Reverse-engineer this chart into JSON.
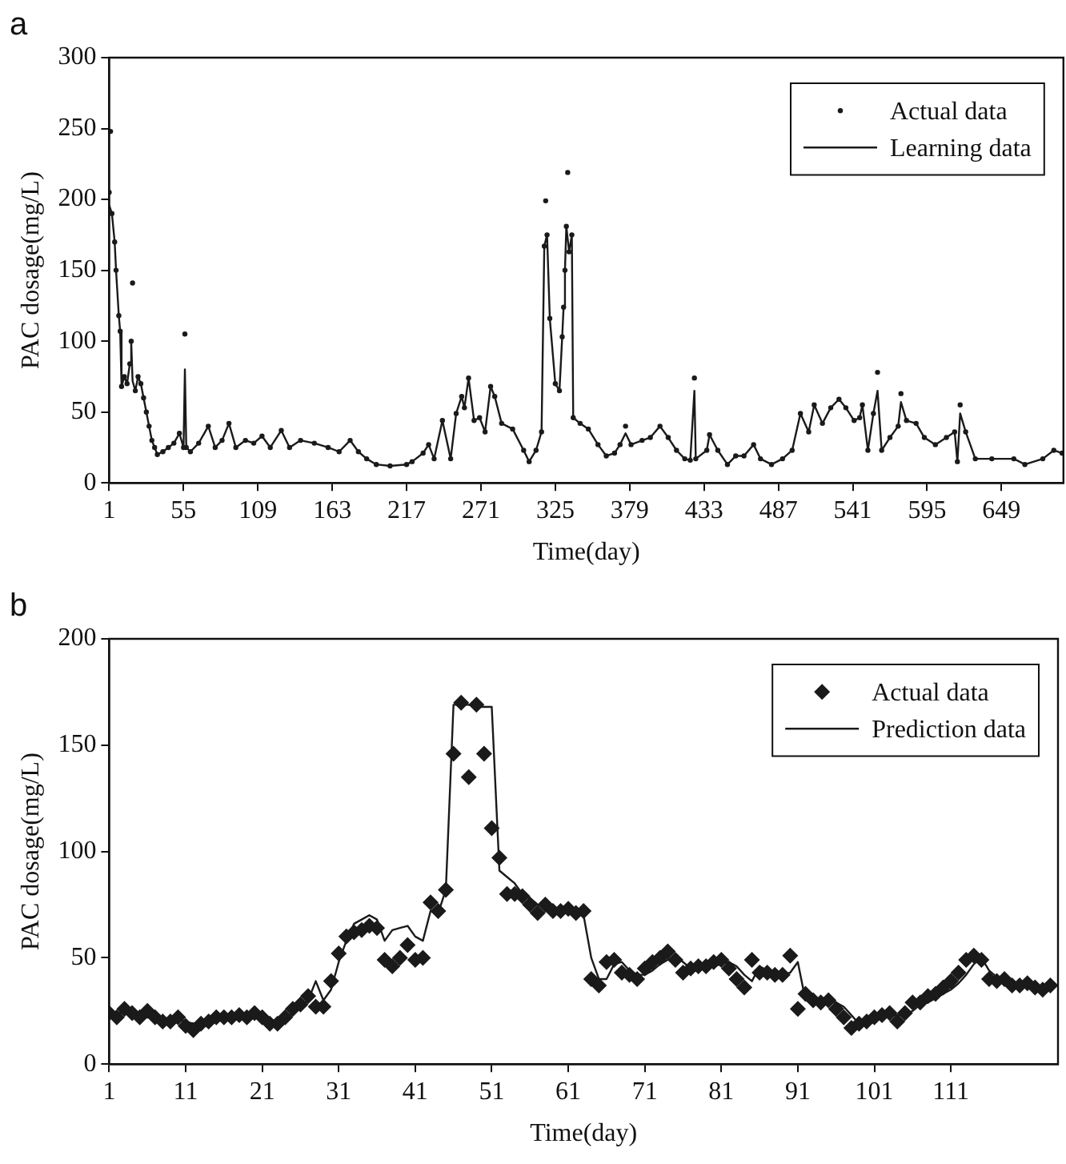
{
  "chart_data": [
    {
      "type": "scatter",
      "title": "a",
      "xlabel": "Time(day)",
      "ylabel": "PAC dosage(mg/L)",
      "xlim": [
        1,
        694
      ],
      "xticks": [
        1,
        55,
        109,
        163,
        217,
        271,
        325,
        379,
        433,
        487,
        541,
        595,
        649
      ],
      "ylim": [
        0,
        300
      ],
      "yticks": [
        0,
        50,
        100,
        150,
        200,
        250,
        300
      ],
      "grid": false,
      "legend": "top right",
      "series": [
        {
          "name": "Actual data",
          "type": "scatter",
          "marker": "circle",
          "color": "#1a1a1a",
          "x": [
            1,
            2,
            3,
            5,
            6,
            8,
            9,
            10,
            12,
            14,
            16,
            17,
            18,
            20,
            22,
            24,
            26,
            28,
            30,
            32,
            34,
            36,
            40,
            44,
            48,
            52,
            55,
            56,
            57,
            60,
            66,
            73,
            78,
            83,
            88,
            93,
            100,
            106,
            112,
            118,
            126,
            132,
            140,
            150,
            160,
            168,
            176,
            182,
            188,
            195,
            205,
            217,
            221,
            229,
            233,
            237,
            243,
            249,
            253,
            257,
            259,
            262,
            266,
            270,
            274,
            278,
            281,
            286,
            294,
            302,
            306,
            311,
            315,
            317,
            318,
            319,
            321,
            325,
            328,
            330,
            331,
            332,
            333,
            334,
            335,
            337,
            338,
            343,
            349,
            356,
            362,
            368,
            372,
            376,
            380,
            388,
            394,
            401,
            407,
            413,
            419,
            423,
            426,
            427,
            435,
            437,
            443,
            450,
            456,
            462,
            469,
            474,
            482,
            490,
            497,
            503,
            509,
            513,
            519,
            525,
            531,
            536,
            542,
            546,
            548,
            552,
            556,
            559,
            562,
            568,
            574,
            576,
            580,
            587,
            593,
            601,
            609,
            615,
            617,
            619,
            623,
            630,
            642,
            658,
            666,
            679,
            687,
            693
          ],
          "values": [
            205,
            248,
            190,
            170,
            150,
            118,
            107,
            68,
            75,
            70,
            84,
            100,
            141,
            65,
            75,
            70,
            60,
            50,
            40,
            30,
            25,
            20,
            22,
            25,
            28,
            35,
            25,
            105,
            25,
            22,
            28,
            40,
            25,
            30,
            42,
            25,
            30,
            28,
            33,
            25,
            37,
            25,
            30,
            28,
            25,
            22,
            30,
            22,
            17,
            13,
            12,
            13,
            15,
            21,
            27,
            17,
            44,
            17,
            49,
            61,
            53,
            74,
            44,
            46,
            36,
            68,
            61,
            42,
            38,
            23,
            15,
            23,
            36,
            167,
            199,
            175,
            116,
            70,
            65,
            103,
            124,
            150,
            181,
            219,
            163,
            175,
            46,
            42,
            38,
            27,
            19,
            21,
            27,
            40,
            27,
            30,
            32,
            40,
            32,
            23,
            17,
            16,
            74,
            17,
            23,
            34,
            23,
            13,
            19,
            19,
            27,
            17,
            13,
            17,
            23,
            49,
            36,
            55,
            42,
            53,
            59,
            53,
            44,
            46,
            55,
            23,
            49,
            78,
            23,
            32,
            40,
            63,
            44,
            42,
            32,
            27,
            32,
            36,
            15,
            55,
            36,
            17,
            17,
            17,
            13,
            17,
            23,
            21
          ]
        },
        {
          "name": "Learning data",
          "type": "line",
          "marker": "none",
          "line_style": "solid",
          "color": "#1a1a1a",
          "x": [
            1,
            3,
            5,
            6,
            8,
            9,
            10,
            12,
            14,
            16,
            17,
            18,
            20,
            22,
            24,
            26,
            28,
            30,
            32,
            34,
            36,
            40,
            44,
            48,
            52,
            55,
            56,
            57,
            60,
            66,
            73,
            78,
            83,
            88,
            93,
            100,
            106,
            112,
            118,
            126,
            132,
            140,
            150,
            160,
            168,
            176,
            182,
            188,
            195,
            205,
            217,
            221,
            229,
            233,
            237,
            243,
            249,
            253,
            257,
            259,
            262,
            266,
            270,
            274,
            278,
            281,
            286,
            294,
            302,
            306,
            311,
            315,
            317,
            319,
            321,
            325,
            328,
            330,
            331,
            332,
            333,
            335,
            337,
            338,
            343,
            349,
            356,
            362,
            368,
            372,
            376,
            380,
            388,
            394,
            401,
            407,
            413,
            419,
            423,
            426,
            427,
            435,
            437,
            443,
            450,
            456,
            462,
            469,
            474,
            482,
            490,
            497,
            503,
            509,
            513,
            519,
            525,
            531,
            536,
            542,
            546,
            548,
            552,
            556,
            559,
            562,
            568,
            574,
            576,
            580,
            587,
            593,
            601,
            609,
            615,
            617,
            619,
            623,
            630,
            642,
            658,
            666,
            679,
            687,
            693
          ],
          "values": [
            196,
            190,
            170,
            150,
            118,
            107,
            68,
            75,
            70,
            84,
            100,
            72,
            65,
            75,
            70,
            60,
            50,
            40,
            30,
            25,
            20,
            22,
            25,
            28,
            35,
            25,
            80,
            25,
            22,
            28,
            40,
            25,
            30,
            42,
            25,
            30,
            28,
            33,
            25,
            37,
            25,
            30,
            28,
            25,
            22,
            30,
            22,
            17,
            13,
            12,
            13,
            15,
            21,
            27,
            17,
            44,
            17,
            49,
            61,
            53,
            74,
            44,
            46,
            36,
            68,
            61,
            42,
            38,
            23,
            15,
            23,
            36,
            167,
            175,
            116,
            70,
            65,
            103,
            124,
            150,
            181,
            163,
            175,
            46,
            42,
            38,
            27,
            19,
            21,
            27,
            35,
            27,
            30,
            32,
            40,
            32,
            23,
            17,
            16,
            65,
            17,
            23,
            34,
            23,
            13,
            19,
            19,
            27,
            17,
            13,
            17,
            23,
            49,
            36,
            55,
            42,
            53,
            59,
            53,
            44,
            46,
            55,
            23,
            49,
            65,
            23,
            32,
            40,
            57,
            44,
            42,
            32,
            27,
            32,
            36,
            15,
            49,
            36,
            17,
            17,
            17,
            13,
            17,
            23,
            21
          ]
        }
      ]
    },
    {
      "type": "scatter",
      "title": "b",
      "xlabel": "Time(day)",
      "ylabel": "PAC dosage(mg/L)",
      "xlim": [
        1,
        125
      ],
      "xticks": [
        1,
        11,
        21,
        31,
        41,
        51,
        61,
        71,
        81,
        91,
        101,
        111
      ],
      "ylim": [
        0,
        200
      ],
      "yticks": [
        0,
        50,
        100,
        150,
        200
      ],
      "grid": false,
      "legend": "top right",
      "series": [
        {
          "name": "Actual data",
          "type": "scatter",
          "marker": "diamond",
          "color": "#1a1a1a",
          "x": [
            1,
            2,
            3,
            4,
            5,
            6,
            7,
            8,
            9,
            10,
            11,
            12,
            13,
            14,
            15,
            16,
            17,
            18,
            19,
            20,
            21,
            22,
            23,
            24,
            25,
            26,
            27,
            28,
            29,
            30,
            31,
            32,
            33,
            34,
            35,
            36,
            37,
            38,
            39,
            40,
            41,
            42,
            43,
            44,
            45,
            46,
            47,
            48,
            49,
            50,
            51,
            52,
            53,
            54,
            55,
            56,
            57,
            58,
            59,
            60,
            61,
            62,
            63,
            64,
            65,
            66,
            67,
            68,
            69,
            70,
            71,
            72,
            73,
            74,
            75,
            76,
            77,
            78,
            79,
            80,
            81,
            82,
            83,
            84,
            85,
            86,
            87,
            88,
            89,
            90,
            91,
            92,
            93,
            94,
            95,
            96,
            97,
            98,
            99,
            100,
            101,
            102,
            103,
            104,
            105,
            106,
            107,
            108,
            109,
            110,
            111,
            112,
            113,
            114,
            115,
            116,
            117,
            118,
            119,
            120,
            121,
            122,
            123,
            124
          ],
          "values": [
            24,
            22,
            26,
            24,
            22,
            25,
            22,
            20,
            20,
            22,
            18,
            16,
            19,
            20,
            22,
            22,
            22,
            23,
            22,
            24,
            22,
            19,
            19,
            22,
            26,
            28,
            32,
            27,
            27,
            39,
            52,
            60,
            62,
            63,
            65,
            64,
            49,
            46,
            50,
            56,
            49,
            50,
            76,
            72,
            82,
            146,
            170,
            135,
            169,
            146,
            111,
            97,
            80,
            80,
            79,
            75,
            71,
            75,
            72,
            72,
            73,
            71,
            72,
            40,
            37,
            48,
            49,
            43,
            42,
            40,
            45,
            48,
            50,
            53,
            49,
            43,
            45,
            46,
            46,
            48,
            49,
            45,
            40,
            36,
            49,
            43,
            43,
            42,
            42,
            51,
            26,
            33,
            30,
            29,
            30,
            26,
            22,
            17,
            19,
            20,
            22,
            23,
            24,
            20,
            24,
            29,
            29,
            32,
            33,
            36,
            39,
            43,
            49,
            51,
            49,
            40,
            39,
            40,
            37,
            37,
            38,
            36,
            35,
            37
          ]
        },
        {
          "name": "Prediction data",
          "type": "line",
          "marker": "none",
          "line_style": "solid",
          "color": "#1a1a1a",
          "x": [
            1,
            2,
            3,
            4,
            5,
            6,
            7,
            8,
            9,
            10,
            11,
            12,
            13,
            14,
            15,
            16,
            17,
            18,
            19,
            20,
            21,
            22,
            23,
            24,
            25,
            26,
            27,
            28,
            29,
            30,
            31,
            32,
            33,
            34,
            35,
            36,
            37,
            38,
            39,
            40,
            41,
            42,
            43,
            44,
            45,
            46,
            47,
            48,
            49,
            50,
            51,
            52,
            53,
            54,
            55,
            56,
            57,
            58,
            59,
            60,
            61,
            62,
            63,
            64,
            65,
            66,
            67,
            68,
            69,
            70,
            71,
            72,
            73,
            74,
            75,
            76,
            77,
            78,
            79,
            80,
            81,
            82,
            83,
            84,
            85,
            86,
            87,
            88,
            89,
            90,
            91,
            92,
            93,
            94,
            95,
            96,
            97,
            98,
            99,
            100,
            101,
            102,
            103,
            104,
            105,
            106,
            107,
            108,
            109,
            110,
            111,
            112,
            113,
            114,
            115,
            116,
            117,
            118,
            119,
            120,
            121,
            122,
            123,
            124
          ],
          "values": [
            25,
            24,
            24,
            25,
            24,
            23,
            23,
            22,
            21,
            21,
            20,
            19,
            18,
            19,
            20,
            21,
            22,
            22,
            22,
            23,
            22,
            21,
            20,
            21,
            24,
            27,
            30,
            39,
            30,
            35,
            48,
            58,
            66,
            68,
            70,
            68,
            58,
            63,
            64,
            65,
            60,
            58,
            72,
            71,
            82,
            169,
            169,
            169,
            168,
            168,
            168,
            91,
            88,
            85,
            80,
            78,
            75,
            74,
            73,
            72,
            72,
            71,
            70,
            50,
            40,
            40,
            47,
            48,
            44,
            42,
            42,
            44,
            47,
            49,
            51,
            48,
            45,
            45,
            46,
            46,
            47,
            48,
            46,
            42,
            39,
            46,
            44,
            43,
            42,
            43,
            48,
            30,
            32,
            30,
            29,
            29,
            27,
            23,
            19,
            20,
            21,
            22,
            23,
            23,
            23,
            25,
            28,
            29,
            31,
            33,
            35,
            38,
            42,
            47,
            50,
            44,
            41,
            40,
            38,
            38,
            37,
            37,
            36,
            36
          ]
        }
      ]
    }
  ]
}
